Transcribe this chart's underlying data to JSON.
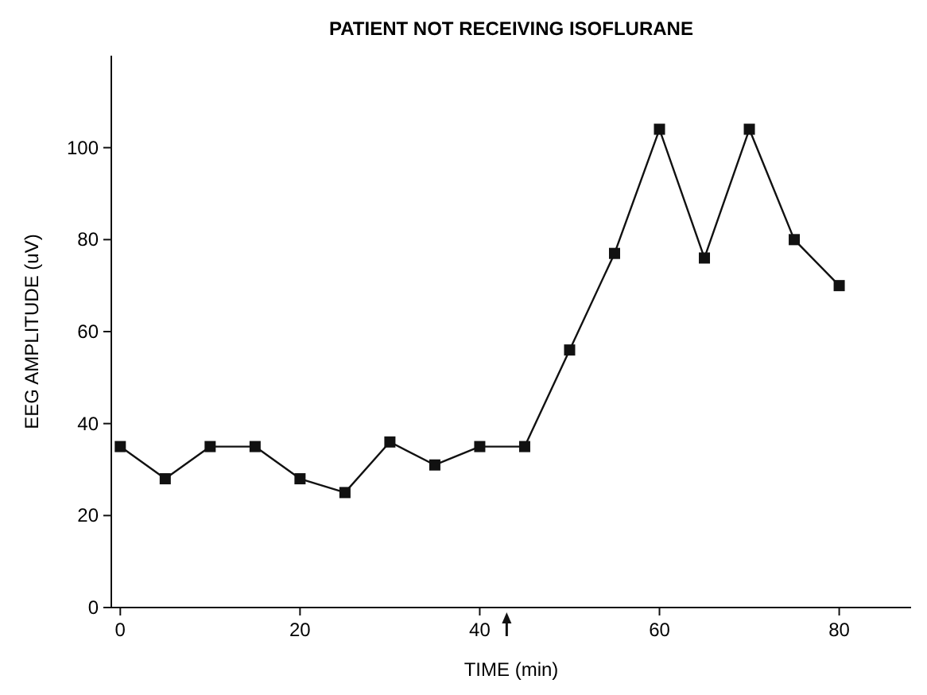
{
  "chart_data": {
    "type": "line",
    "title": "PATIENT NOT RECEIVING ISOFLURANE",
    "xlabel": "TIME (min)",
    "ylabel": "EEG AMPLITUDE (uV)",
    "x": [
      0,
      5,
      10,
      15,
      20,
      25,
      30,
      35,
      40,
      45,
      50,
      55,
      60,
      65,
      70,
      75,
      80
    ],
    "series": [
      {
        "color": "#111111",
        "values": [
          35,
          28,
          35,
          35,
          28,
          25,
          36,
          31,
          35,
          35,
          56,
          77,
          104,
          76,
          104,
          80,
          70
        ]
      }
    ],
    "xlim": [
      -1,
      88
    ],
    "xticks": [
      0,
      20,
      40,
      60,
      80
    ],
    "ylim": [
      0,
      120
    ],
    "yticks": [
      0,
      20,
      40,
      60,
      80,
      100
    ],
    "marker": "square",
    "line_style": "solid",
    "grid": false
  }
}
